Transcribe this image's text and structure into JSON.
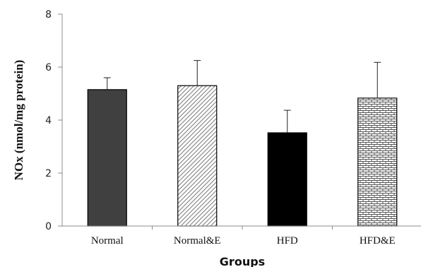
{
  "chart_data": {
    "type": "bar",
    "title": "",
    "xlabel": "Groups",
    "ylabel": "NOx (nmol/mg protein)",
    "ylim": [
      0,
      8
    ],
    "yticks": [
      "0",
      "2",
      "4",
      "6",
      "8"
    ],
    "categories": [
      "Normal",
      "Normal&E",
      "HFD",
      "HFD&E"
    ],
    "values": [
      5.15,
      5.3,
      3.52,
      4.83
    ],
    "errors": [
      0.45,
      0.95,
      0.85,
      1.35
    ],
    "grid": false,
    "legend": "none",
    "bar_styles": [
      "dark-gray-solid",
      "light-diagonal-hatch",
      "black-solid",
      "horizontal-brick-hatch"
    ],
    "colors": {
      "dark": "#404040",
      "black": "#000000",
      "axis": "#8c8c8c"
    }
  }
}
